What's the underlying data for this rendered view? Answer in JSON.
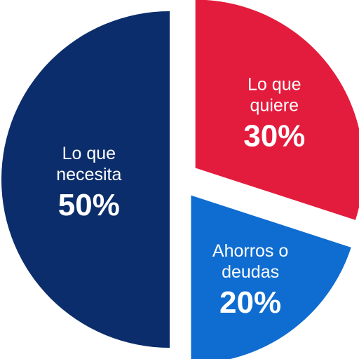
{
  "chart_data": {
    "type": "pie",
    "slices": [
      {
        "label_lines": [
          "Lo que",
          "quiere"
        ],
        "value": 30,
        "value_label": "30%",
        "color": "#e31c3d"
      },
      {
        "label_lines": [
          "Ahorros o",
          "deudas"
        ],
        "value": 20,
        "value_label": "20%",
        "color": "#0f6cd0"
      },
      {
        "label_lines": [
          "Lo que",
          "necesita"
        ],
        "value": 50,
        "value_label": "50%",
        "color": "#0c2d6b"
      }
    ]
  }
}
